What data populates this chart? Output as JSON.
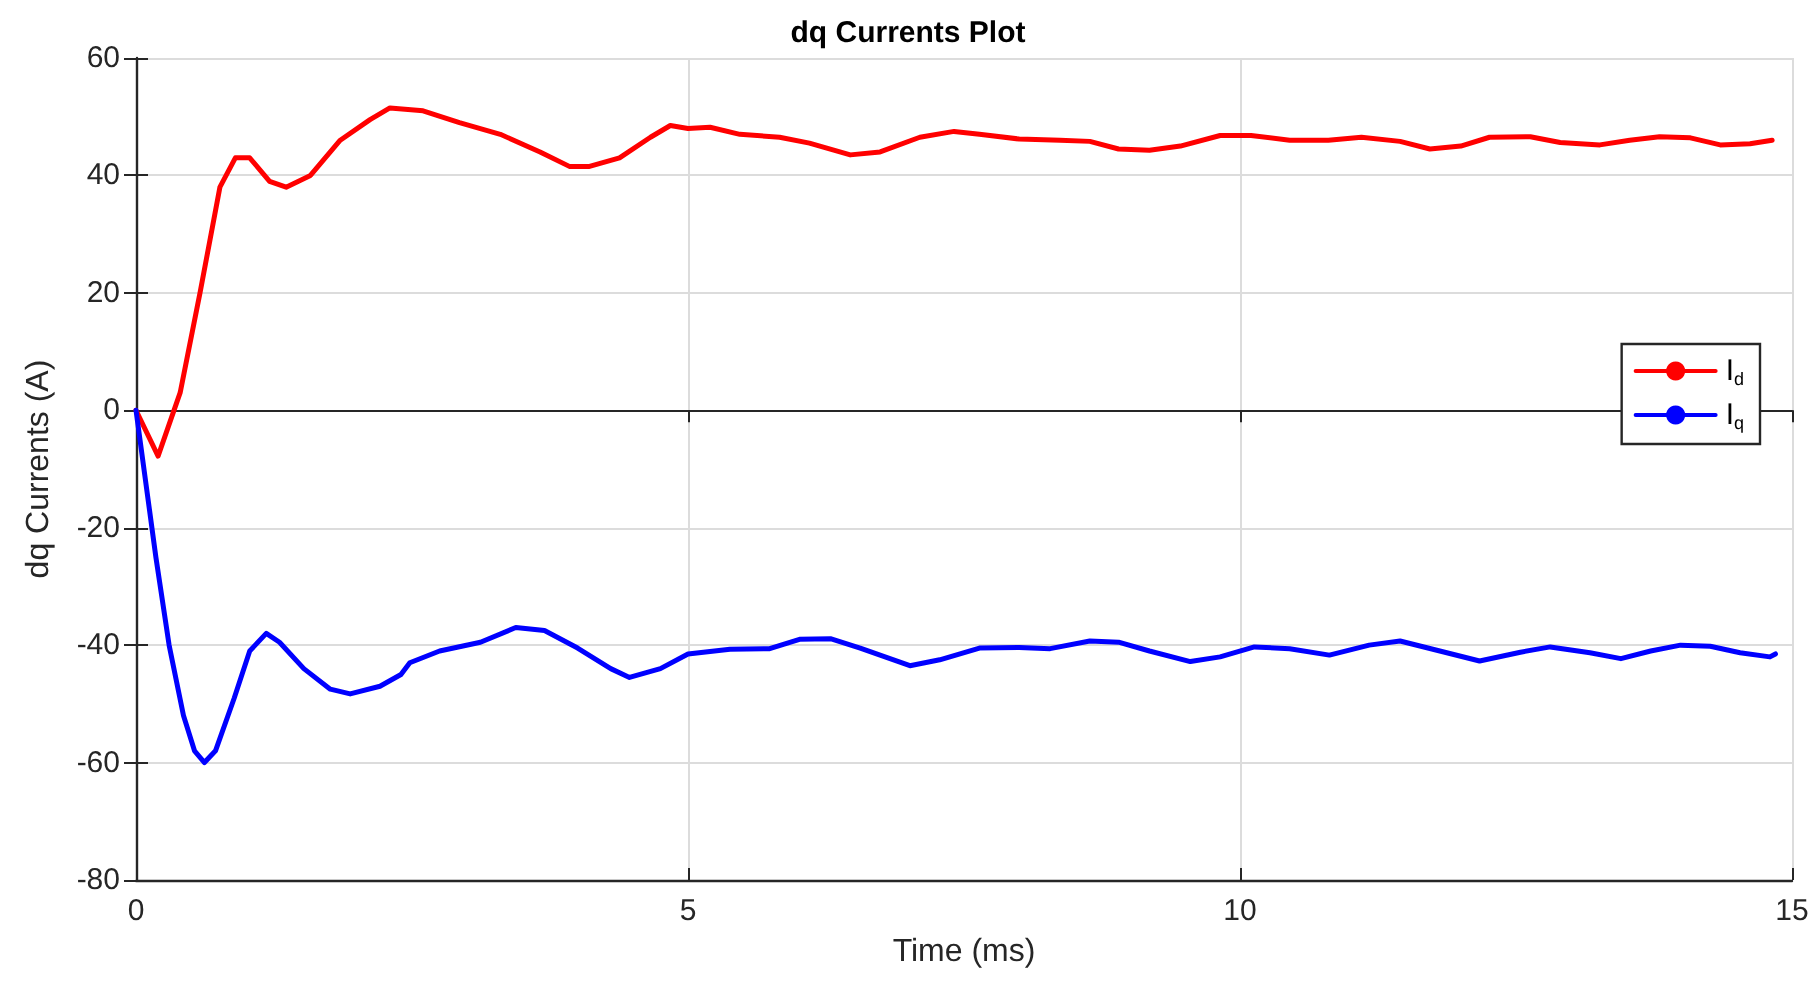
{
  "chart_data": {
    "type": "line",
    "title": "dq Currents Plot",
    "xlabel": "Time (ms)",
    "ylabel": "dq Currents (A)",
    "xlim": [
      0,
      15
    ],
    "xticks": [
      0,
      5,
      10,
      15
    ],
    "ylim": [
      -80,
      60
    ],
    "yticks": [
      -80,
      -60,
      -40,
      -20,
      0,
      20,
      40,
      60
    ],
    "grid": true,
    "legend": "right",
    "marker": "none",
    "line_style": "solid",
    "series": [
      {
        "name": "I$_{d}$",
        "color": "#ff0000",
        "x": [
          0,
          0.2,
          0.4,
          0.58,
          0.76,
          0.9,
          1.03,
          1.21,
          1.36,
          1.58,
          1.85,
          2.12,
          2.3,
          2.6,
          2.93,
          3.3,
          3.66,
          3.93,
          4.1,
          4.38,
          4.66,
          4.84,
          5.0,
          5.2,
          5.47,
          5.83,
          6.1,
          6.47,
          6.74,
          7.1,
          7.41,
          7.64,
          8.0,
          8.37,
          8.64,
          8.9,
          9.18,
          9.46,
          9.82,
          10.1,
          10.45,
          10.8,
          11.1,
          11.45,
          11.72,
          12.0,
          12.26,
          12.63,
          12.9,
          13.26,
          13.53,
          13.8,
          14.08,
          14.35,
          14.62,
          14.82
        ],
        "values": [
          0,
          -7.8,
          3,
          20,
          38,
          43,
          43,
          39,
          38,
          40,
          46,
          49.5,
          51.5,
          51,
          49,
          47,
          44,
          41.5,
          41.5,
          43,
          46.5,
          48.5,
          48,
          48.2,
          47,
          46.5,
          45.5,
          43.5,
          44,
          46.5,
          47.5,
          47,
          46.2,
          46,
          45.8,
          44.5,
          44.3,
          45,
          46.8,
          46.8,
          46,
          46,
          46.5,
          45.8,
          44.5,
          45,
          46.5,
          46.6,
          45.6,
          45.2,
          46,
          46.6,
          46.4,
          45.2,
          45.4,
          46
        ]
      },
      {
        "name": "I$_{q}$",
        "color": "#0000ff",
        "x": [
          0,
          0.18,
          0.3,
          0.43,
          0.53,
          0.62,
          0.72,
          0.89,
          1.03,
          1.18,
          1.3,
          1.52,
          1.76,
          1.94,
          2.21,
          2.4,
          2.48,
          2.75,
          3.12,
          3.44,
          3.7,
          4.0,
          4.3,
          4.47,
          4.75,
          5.0,
          5.38,
          5.74,
          6.01,
          6.29,
          6.56,
          7.01,
          7.28,
          7.64,
          8.0,
          8.28,
          8.64,
          8.9,
          9.18,
          9.55,
          9.82,
          10.13,
          10.45,
          10.81,
          11.17,
          11.45,
          11.81,
          12.17,
          12.54,
          12.81,
          13.17,
          13.45,
          13.72,
          13.99,
          14.26,
          14.53,
          14.8,
          14.85
        ],
        "values": [
          0,
          -25,
          -40,
          -52,
          -58,
          -60,
          -58,
          -49,
          -41,
          -38,
          -39.5,
          -44,
          -47.5,
          -48.3,
          -47,
          -45,
          -43,
          -41,
          -39.5,
          -37,
          -37.5,
          -40.5,
          -44,
          -45.5,
          -44,
          -41.5,
          -40.7,
          -40.6,
          -39,
          -38.9,
          -40.5,
          -43.5,
          -42.5,
          -40.5,
          -40.4,
          -40.6,
          -39.3,
          -39.5,
          -41,
          -42.8,
          -42,
          -40.3,
          -40.6,
          -41.7,
          -40,
          -39.3,
          -41,
          -42.7,
          -41.2,
          -40.3,
          -41.3,
          -42.3,
          -41,
          -40,
          -40.2,
          -41.3,
          -42,
          -41.5
        ]
      }
    ]
  }
}
